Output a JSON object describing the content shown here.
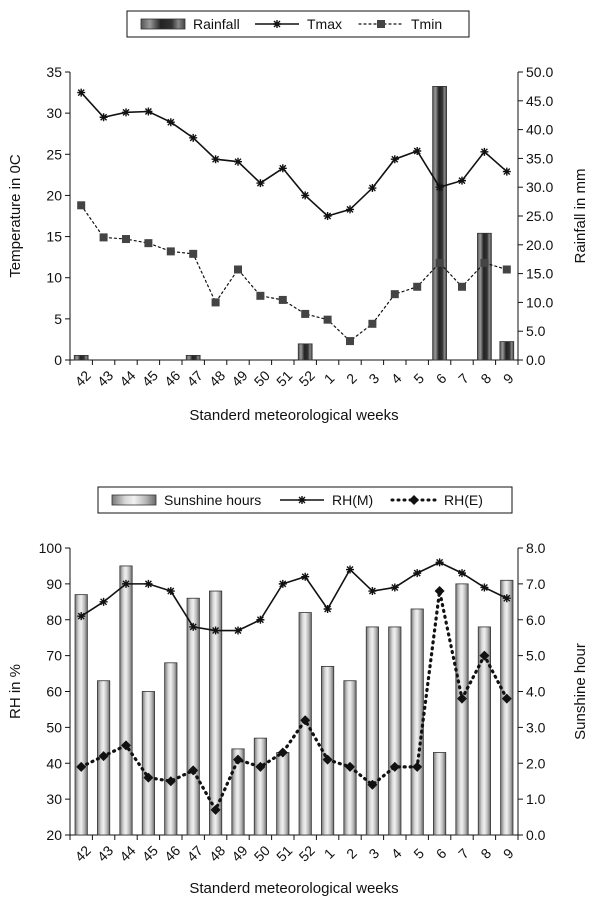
{
  "chart_data": [
    {
      "type": "bar+line",
      "title": "",
      "xlabel": "Standerd meteorological weeks",
      "ylabel": "Temperature in 0C",
      "y2label": "Rainfall in mm",
      "ylim": [
        0,
        35
      ],
      "y2lim": [
        0,
        50
      ],
      "y_ticks": [
        "0",
        "5",
        "10",
        "15",
        "20",
        "25",
        "30",
        "35"
      ],
      "y2_ticks": [
        "0.0",
        "5.0",
        "10.0",
        "15.0",
        "20.0",
        "25.0",
        "30.0",
        "35.0",
        "40.0",
        "45.0",
        "50.0"
      ],
      "legend_position": "top",
      "grid": false,
      "categories": [
        "42",
        "43",
        "44",
        "45",
        "46",
        "47",
        "48",
        "49",
        "50",
        "51",
        "52",
        "1",
        "2",
        "3",
        "4",
        "5",
        "6",
        "7",
        "8",
        "9"
      ],
      "series": [
        {
          "name": "Rainfall",
          "type": "bar",
          "axis": "right",
          "values": [
            0.8,
            0,
            0,
            0,
            0,
            0.8,
            0,
            0,
            0,
            0,
            2.8,
            0,
            0,
            0,
            0,
            0,
            47.5,
            0,
            22.0,
            3.2
          ]
        },
        {
          "name": "Tmax",
          "type": "line",
          "axis": "left",
          "marker": "star",
          "style": "solid",
          "values": [
            32.5,
            29.5,
            30.1,
            30.2,
            28.9,
            27.0,
            24.4,
            24.1,
            21.5,
            23.3,
            20.0,
            17.5,
            18.3,
            20.9,
            24.4,
            25.4,
            21.0,
            21.8,
            25.3,
            22.9
          ]
        },
        {
          "name": "Tmin",
          "type": "line",
          "axis": "left",
          "marker": "square",
          "style": "dotted",
          "values": [
            18.8,
            14.9,
            14.7,
            14.2,
            13.2,
            12.9,
            7.0,
            11.0,
            7.8,
            7.3,
            5.6,
            4.9,
            2.3,
            4.4,
            8.0,
            8.9,
            11.8,
            8.9,
            11.8,
            11.0
          ]
        }
      ]
    },
    {
      "type": "bar+line",
      "title": "",
      "xlabel": "Standerd meteorological weeks",
      "ylabel": "RH in %",
      "y2label": "Sunshine hour",
      "ylim": [
        20,
        100
      ],
      "y2lim": [
        0,
        8
      ],
      "y_ticks": [
        "20",
        "30",
        "40",
        "50",
        "60",
        "70",
        "80",
        "90",
        "100"
      ],
      "y2_ticks": [
        "0.0",
        "1.0",
        "2.0",
        "3.0",
        "4.0",
        "5.0",
        "6.0",
        "7.0",
        "8.0"
      ],
      "legend_position": "top",
      "grid": false,
      "categories": [
        "42",
        "43",
        "44",
        "45",
        "46",
        "47",
        "48",
        "49",
        "50",
        "51",
        "52",
        "1",
        "2",
        "3",
        "4",
        "5",
        "6",
        "7",
        "8",
        "9"
      ],
      "series": [
        {
          "name": "Sunshine hours",
          "type": "bar",
          "axis": "right",
          "values": [
            6.7,
            4.3,
            7.5,
            4.0,
            4.8,
            6.6,
            6.8,
            2.4,
            2.7,
            2.3,
            6.2,
            4.7,
            4.3,
            5.8,
            5.8,
            6.3,
            2.3,
            7.0,
            5.8,
            7.1
          ]
        },
        {
          "name": "RH(M)",
          "type": "line",
          "axis": "left",
          "marker": "star",
          "style": "solid",
          "values": [
            81,
            85,
            90,
            90,
            88,
            78,
            77,
            77,
            80,
            90,
            92,
            83,
            94,
            88,
            89,
            93,
            96,
            93,
            89,
            86
          ]
        },
        {
          "name": "RH(E)",
          "type": "line",
          "axis": "left",
          "marker": "diamond",
          "style": "dotted",
          "values": [
            39,
            42,
            45,
            36,
            35,
            38,
            27,
            41,
            39,
            43,
            52,
            41,
            39,
            34,
            39,
            39,
            88,
            58,
            70,
            58
          ]
        }
      ]
    }
  ]
}
